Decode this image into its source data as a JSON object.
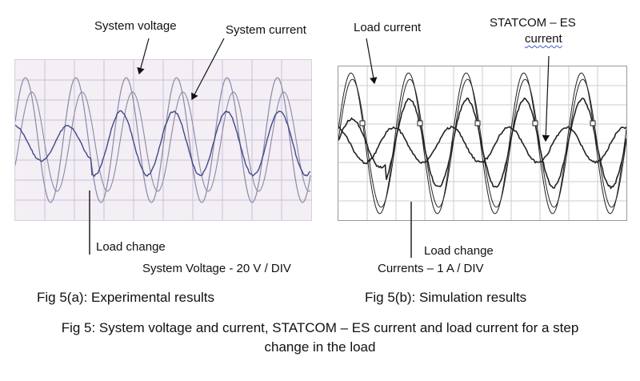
{
  "panel_a": {
    "label_system_voltage": "System voltage",
    "label_system_current": "System current",
    "label_load_change": "Load change",
    "scale": "System Voltage - 20 V / DIV",
    "caption": "Fig 5(a): Experimental results",
    "colors": {
      "background": "#f4eef5",
      "grid": "#c9c2d6",
      "trace_dark": "#3f4a8a",
      "trace_light": "#8a8aa6"
    }
  },
  "panel_b": {
    "label_load_current": "Load current",
    "label_statcom_line1": "STATCOM – ES",
    "label_statcom_line2": "current",
    "label_load_change": "Load change",
    "scale": "Currents – 1 A / DIV",
    "caption": "Fig 5(b): Simulation results",
    "colors": {
      "background": "#ffffff",
      "grid": "#cccccc",
      "trace": "#222222"
    }
  },
  "figure_caption_line1": "Fig 5: System voltage and current, STATCOM – ES current and load current for a step",
  "figure_caption_line2": "change in the load"
}
